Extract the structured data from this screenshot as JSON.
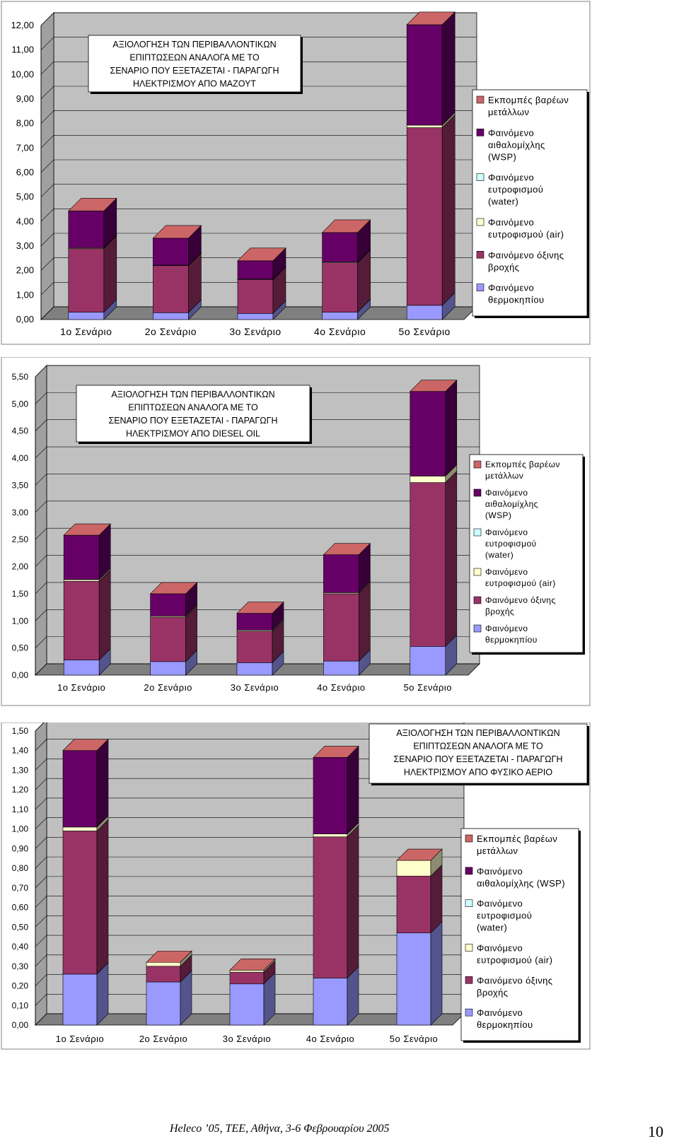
{
  "colors": {
    "heavy_metals": "#CC6666",
    "wsp": "#660066",
    "eutro_water": "#CCFFFF",
    "eutro_air": "#FFFFCC",
    "acid_rain": "#993366",
    "greenhouse": "#9999FF",
    "plot_bg": "#C0C0C0",
    "floor": "#808080"
  },
  "chart_data": [
    {
      "type": "bar",
      "stacked": true,
      "three_d": true,
      "title": "ΑΞΙΟΛΟΓΗΣΗ ΤΩΝ ΠΕΡΙΒΑΛΛΟΝΤΙΚΩΝ ΕΠΙΠΤΩΣΕΩΝ ΑΝΑΛΟΓΑ ΜΕ ΤΟ ΣΕΝΑΡΙΟ ΠΟΥ ΕΞΕΤΑΖΕΤΑΙ - ΠΑΡΑΓΩΓΗ ΗΛΕΚΤΡΙΣΜΟΥ ΑΠΟ ΜΑΖΟΥΤ",
      "title_lines": [
        "ΑΞΙΟΛΟΓΗΣΗ ΤΩΝ ΠΕΡΙΒΑΛΛΟΝΤΙΚΩΝ",
        "ΕΠΙΠΤΩΣΕΩΝ ΑΝΑΛΟΓΑ ΜΕ ΤΟ",
        "ΣΕΝΑΡΙΟ ΠΟΥ ΕΞΕΤΑΖΕΤΑΙ - ΠΑΡΑΓΩΓΗ",
        "ΗΛΕΚΤΡΙΣΜΟΥ ΑΠΟ ΜΑΖΟΥΤ"
      ],
      "categories": [
        "1ο Σενάριο",
        "2ο Σενάριο",
        "3ο Σενάριο",
        "4ο Σενάριο",
        "5ο Σενάριο"
      ],
      "ylim": [
        0,
        12
      ],
      "yticks": [
        "0,00",
        "1,00",
        "2,00",
        "3,00",
        "4,00",
        "5,00",
        "6,00",
        "7,00",
        "8,00",
        "9,00",
        "10,00",
        "11,00",
        "12,00"
      ],
      "grid": true,
      "legend_position": "right",
      "series": [
        {
          "name": "Φαινόμενο θερμοκηπίου",
          "color": "#9999FF",
          "values": [
            0.3,
            0.28,
            0.25,
            0.3,
            0.58
          ]
        },
        {
          "name": "Φαινόμενο όξινης βροχής",
          "color": "#993366",
          "values": [
            2.6,
            1.92,
            1.38,
            2.02,
            7.25
          ]
        },
        {
          "name": "Φαινόμενο ευτροφισμού (air)",
          "color": "#FFFFCC",
          "values": [
            0.03,
            0.02,
            0.02,
            0.03,
            0.1
          ]
        },
        {
          "name": "Φαινόμενο ευτροφισμού (water)",
          "color": "#CCFFFF",
          "values": [
            0.0,
            0.0,
            0.0,
            0.0,
            0.0
          ]
        },
        {
          "name": "Φαινόμενο αιθαλομίχλης (WSP)",
          "color": "#660066",
          "values": [
            1.5,
            1.1,
            0.75,
            1.2,
            4.1
          ]
        },
        {
          "name": "Εκπομπές βαρέων μετάλλων",
          "color": "#CC6666",
          "values": [
            0.0,
            0.0,
            0.0,
            0.0,
            0.0
          ]
        }
      ],
      "legend": [
        {
          "lines": [
            "Εκπομπές βαρέων",
            "μετάλλων"
          ],
          "color": "#CC6666"
        },
        {
          "lines": [
            "Φαινόμενο",
            "αιθαλομίχλης",
            "(WSP)"
          ],
          "color": "#660066"
        },
        {
          "lines": [
            "Φαινόμενο",
            "ευτροφισμού",
            "(water)"
          ],
          "color": "#CCFFFF"
        },
        {
          "lines": [
            "Φαινόμενο",
            "ευτροφισμού (air)"
          ],
          "color": "#FFFFCC"
        },
        {
          "lines": [
            "Φαινόμενο όξινης",
            "βροχής"
          ],
          "color": "#993366"
        },
        {
          "lines": [
            "Φαινόμενο",
            "θερμοκηπίου"
          ],
          "color": "#9999FF"
        }
      ]
    },
    {
      "type": "bar",
      "stacked": true,
      "three_d": true,
      "title": "ΑΞΙΟΛΟΓΗΣΗ ΤΩΝ ΠΕΡΙΒΑΛΛΟΝΤΙΚΩΝ ΕΠΙΠΤΩΣΕΩΝ ΑΝΑΛΟΓΑ ΜΕ ΤΟ ΣΕΝΑΡΙΟ ΠΟΥ ΕΞΕΤΑΖΕΤΑΙ - ΠΑΡΑΓΩΓΗ ΗΛΕΚΤΡΙΣΜΟΥ ΑΠΟ DIESEL OIL",
      "title_lines": [
        "ΑΞΙΟΛΟΓΗΣΗ ΤΩΝ ΠΕΡΙΒΑΛΛΟΝΤΙΚΩΝ",
        "ΕΠΙΠΤΩΣΕΩΝ ΑΝΑΛΟΓΑ ΜΕ ΤΟ",
        "ΣΕΝΑΡΙΟ ΠΟΥ ΕΞΕΤΑΖΕΤΑΙ - ΠΑΡΑΓΩΓΗ",
        "ΗΛΕΚΤΡΙΣΜΟΥ ΑΠΟ DIESEL OIL"
      ],
      "categories": [
        "1ο Σενάριο",
        "2ο Σενάριο",
        "3ο Σενάριο",
        "4ο Σενάριο",
        "5ο Σενάριο"
      ],
      "ylim": [
        0,
        5.5
      ],
      "yticks": [
        "0,00",
        "0,50",
        "1,00",
        "1,50",
        "2,00",
        "2,50",
        "3,00",
        "3,50",
        "4,00",
        "4,50",
        "5,00",
        "5,50"
      ],
      "grid": true,
      "legend_position": "right",
      "series": [
        {
          "name": "Φαινόμενο θερμοκηπίου",
          "color": "#9999FF",
          "values": [
            0.28,
            0.25,
            0.23,
            0.26,
            0.53
          ]
        },
        {
          "name": "Φαινόμενο όξινης βροχής",
          "color": "#993366",
          "values": [
            1.45,
            0.82,
            0.58,
            1.24,
            3.02
          ]
        },
        {
          "name": "Φαινόμενο ευτροφισμού (air)",
          "color": "#FFFFCC",
          "values": [
            0.03,
            0.02,
            0.02,
            0.02,
            0.12
          ]
        },
        {
          "name": "Φαινόμενο ευτροφισμού (water)",
          "color": "#CCFFFF",
          "values": [
            0.0,
            0.0,
            0.0,
            0.0,
            0.0
          ]
        },
        {
          "name": "Φαινόμενο αιθαλομίχλης (WSP)",
          "color": "#660066",
          "values": [
            0.82,
            0.41,
            0.31,
            0.7,
            1.56
          ]
        },
        {
          "name": "Εκπομπές βαρέων μετάλλων",
          "color": "#CC6666",
          "values": [
            0.0,
            0.0,
            0.0,
            0.0,
            0.0
          ]
        }
      ],
      "legend": [
        {
          "lines": [
            "Εκπομπές βαρέων",
            "μετάλλων"
          ],
          "color": "#CC6666"
        },
        {
          "lines": [
            "Φαινόμενο",
            "αιθαλομίχλης",
            "(WSP)"
          ],
          "color": "#660066"
        },
        {
          "lines": [
            "Φαινόμενο",
            "ευτροφισμού",
            "(water)"
          ],
          "color": "#CCFFFF"
        },
        {
          "lines": [
            "Φαινόμενο",
            "ευτροφισμού (air)"
          ],
          "color": "#FFFFCC"
        },
        {
          "lines": [
            "Φαινόμενο όξινης",
            "βροχής"
          ],
          "color": "#993366"
        },
        {
          "lines": [
            "Φαινόμενο",
            "θερμοκηπίου"
          ],
          "color": "#9999FF"
        }
      ]
    },
    {
      "type": "bar",
      "stacked": true,
      "three_d": true,
      "title": "ΑΞΙΟΛΟΓΗΣΗ ΤΩΝ ΠΕΡΙΒΑΛΛΟΝΤΙΚΩΝ ΕΠΙΠΤΩΣΕΩΝ ΑΝΑΛΟΓΑ ΜΕ ΤΟ ΣΕΝΑΡΙΟ ΠΟΥ ΕΞΕΤΑΖΕΤΑΙ - ΠΑΡΑΓΩΓΗ ΗΛΕΚΤΡΙΣΜΟΥ ΑΠΟ ΦΥΣΙΚΟ ΑΕΡΙΟ",
      "title_lines": [
        "ΑΞΙΟΛΟΓΗΣΗ ΤΩΝ ΠΕΡΙΒΑΛΛΟΝΤΙΚΩΝ",
        "ΕΠΙΠΤΩΣΕΩΝ ΑΝΑΛΟΓΑ ΜΕ ΤΟ",
        "ΣΕΝΑΡΙΟ ΠΟΥ ΕΞΕΤΑΖΕΤΑΙ - ΠΑΡΑΓΩΓΗ",
        "ΗΛΕΚΤΡΙΣΜΟΥ ΑΠΟ ΦΥΣΙΚΟ ΑΕΡΙΟ"
      ],
      "categories": [
        "1ο Σενάριο",
        "2ο Σενάριο",
        "3ο Σενάριο",
        "4ο Σενάριο",
        "5ο Σενάριο"
      ],
      "ylim": [
        0,
        1.5
      ],
      "yticks": [
        "0,00",
        "0,10",
        "0,20",
        "0,30",
        "0,40",
        "0,50",
        "0,60",
        "0,70",
        "0,80",
        "0,90",
        "1,00",
        "1,10",
        "1,20",
        "1,30",
        "1,40",
        "1,50"
      ],
      "grid": true,
      "legend_position": "right",
      "series": [
        {
          "name": "Φαινόμενο θερμοκηπίου",
          "color": "#9999FF",
          "values": [
            0.26,
            0.22,
            0.21,
            0.24,
            0.47
          ]
        },
        {
          "name": "Φαινόμενο όξινης βροχής",
          "color": "#993366",
          "values": [
            0.73,
            0.08,
            0.06,
            0.72,
            0.29
          ]
        },
        {
          "name": "Φαινόμενο ευτροφισμού (air)",
          "color": "#FFFFCC",
          "values": [
            0.02,
            0.02,
            0.01,
            0.015,
            0.08
          ]
        },
        {
          "name": "Φαινόμενο ευτροφισμού (water)",
          "color": "#CCFFFF",
          "values": [
            0.0,
            0.0,
            0.0,
            0.0,
            0.0
          ]
        },
        {
          "name": "Φαινόμενο αιθαλομίχλης (WSP)",
          "color": "#660066",
          "values": [
            0.39,
            0.0,
            0.0,
            0.39,
            0.0
          ]
        },
        {
          "name": "Εκπομπές βαρέων μετάλλων",
          "color": "#CC6666",
          "values": [
            0.0,
            0.0,
            0.0,
            0.0,
            0.0
          ]
        }
      ],
      "legend": [
        {
          "lines": [
            "Εκπομπές βαρέων",
            "μετάλλων"
          ],
          "color": "#CC6666"
        },
        {
          "lines": [
            "Φαινόμενο",
            "αιθαλομίχλης (WSP)"
          ],
          "color": "#660066"
        },
        {
          "lines": [
            "Φαινόμενο",
            "ευτροφισμού",
            "(water)"
          ],
          "color": "#CCFFFF"
        },
        {
          "lines": [
            "Φαινόμενο",
            "ευτροφισμού (air)"
          ],
          "color": "#FFFFCC"
        },
        {
          "lines": [
            "Φαινόμενο όξινης",
            "βροχής"
          ],
          "color": "#993366"
        },
        {
          "lines": [
            "Φαινόμενο",
            "θερμοκηπίου"
          ],
          "color": "#9999FF"
        }
      ]
    }
  ],
  "footer": {
    "text": "Heleco ’05, ΤΕΕ, Αθήνα, 3-6 Φεβρουαρίου 2005",
    "page_number": "10"
  }
}
